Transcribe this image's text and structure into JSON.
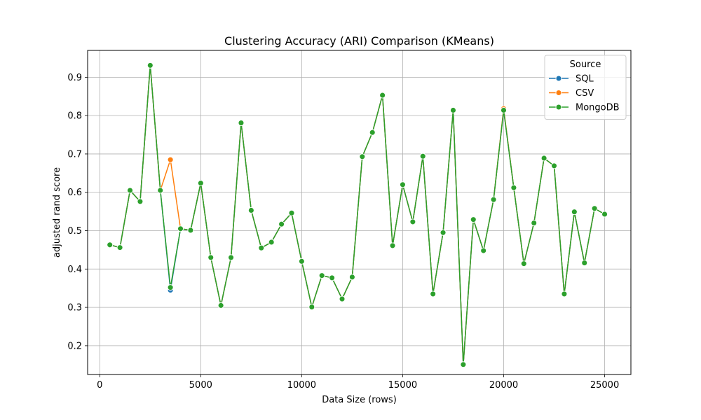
{
  "chart_data": {
    "type": "line",
    "title": "Clustering Accuracy (ARI) Comparison (KMeans)",
    "xlabel": "Data Size (rows)",
    "ylabel": "adjusted rand score",
    "xlim": [
      -600,
      26300
    ],
    "ylim": [
      0.125,
      0.97
    ],
    "xticks": [
      0,
      5000,
      10000,
      15000,
      20000,
      25000
    ],
    "xtick_labels": [
      "0",
      "5000",
      "10000",
      "15000",
      "20000",
      "25000"
    ],
    "yticks": [
      0.2,
      0.3,
      0.4,
      0.5,
      0.6,
      0.7,
      0.8,
      0.9
    ],
    "ytick_labels": [
      "0.2",
      "0.3",
      "0.4",
      "0.5",
      "0.6",
      "0.7",
      "0.8",
      "0.9"
    ],
    "grid": true,
    "legend": {
      "title": "Source",
      "placement": "upper right"
    },
    "x": [
      500,
      1000,
      1500,
      2000,
      2500,
      3000,
      3500,
      4000,
      4500,
      5000,
      5500,
      6000,
      6500,
      7000,
      7500,
      8000,
      8500,
      9000,
      9500,
      10000,
      10500,
      11000,
      11500,
      12000,
      12500,
      13000,
      13500,
      14000,
      14500,
      15000,
      15500,
      16000,
      16500,
      17000,
      17500,
      18000,
      18500,
      19000,
      19500,
      20000,
      20500,
      21000,
      21500,
      22000,
      22500,
      23000,
      23500,
      24000,
      24500,
      25000
    ],
    "series": [
      {
        "name": "SQL",
        "color": "#1f77b4",
        "values": [
          0.463,
          0.456,
          0.605,
          0.576,
          0.931,
          0.605,
          0.345,
          0.505,
          0.501,
          0.624,
          0.43,
          0.305,
          0.43,
          0.781,
          0.553,
          0.455,
          0.47,
          0.517,
          0.546,
          0.42,
          0.301,
          0.383,
          0.377,
          0.322,
          0.379,
          0.693,
          0.756,
          0.853,
          0.461,
          0.62,
          0.523,
          0.694,
          0.335,
          0.495,
          0.814,
          0.151,
          0.529,
          0.448,
          0.581,
          0.814,
          0.612,
          0.414,
          0.52,
          0.689,
          0.669,
          0.335,
          0.549,
          0.416,
          0.558,
          0.543
        ]
      },
      {
        "name": "CSV",
        "color": "#ff7f0e",
        "values": [
          0.463,
          0.456,
          0.605,
          0.576,
          0.931,
          0.605,
          0.685,
          0.505,
          0.501,
          0.624,
          0.43,
          0.305,
          0.43,
          0.781,
          0.553,
          0.455,
          0.47,
          0.517,
          0.546,
          0.42,
          0.301,
          0.383,
          0.377,
          0.322,
          0.379,
          0.693,
          0.756,
          0.853,
          0.461,
          0.62,
          0.523,
          0.694,
          0.335,
          0.495,
          0.814,
          0.151,
          0.529,
          0.448,
          0.581,
          0.818,
          0.612,
          0.414,
          0.52,
          0.689,
          0.669,
          0.335,
          0.549,
          0.416,
          0.558,
          0.543
        ]
      },
      {
        "name": "MongoDB",
        "color": "#2ca02c",
        "values": [
          0.463,
          0.456,
          0.605,
          0.576,
          0.931,
          0.605,
          0.352,
          0.505,
          0.501,
          0.624,
          0.43,
          0.305,
          0.43,
          0.781,
          0.553,
          0.455,
          0.47,
          0.517,
          0.546,
          0.42,
          0.301,
          0.383,
          0.377,
          0.322,
          0.379,
          0.693,
          0.756,
          0.853,
          0.461,
          0.62,
          0.523,
          0.694,
          0.335,
          0.495,
          0.814,
          0.151,
          0.529,
          0.448,
          0.581,
          0.814,
          0.612,
          0.414,
          0.52,
          0.689,
          0.669,
          0.335,
          0.549,
          0.416,
          0.558,
          0.543
        ]
      }
    ]
  }
}
